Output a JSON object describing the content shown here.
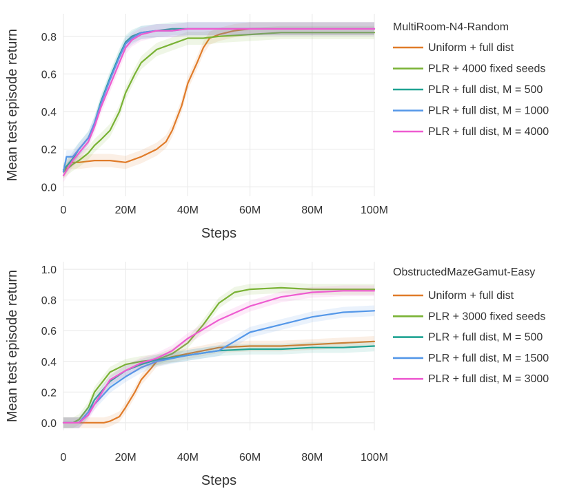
{
  "chart_data": [
    {
      "type": "line",
      "title": "",
      "xlabel": "Steps",
      "ylabel": "Mean test episode return",
      "xlim": [
        0,
        100
      ],
      "ylim": [
        -0.05,
        0.92
      ],
      "xticks": [
        0,
        20,
        40,
        60,
        80,
        100
      ],
      "xtick_labels": [
        "0",
        "20M",
        "40M",
        "60M",
        "80M",
        "100M"
      ],
      "yticks": [
        0.0,
        0.2,
        0.4,
        0.6,
        0.8
      ],
      "ytick_labels": [
        "0.0",
        "0.2",
        "0.4",
        "0.6",
        "0.8"
      ],
      "grid": true,
      "legend_title": "MultiRoom-N4-Random",
      "legend_position": "right",
      "series": [
        {
          "name": "Uniform + full dist",
          "color": "#e07b29",
          "x": [
            0,
            2,
            5,
            10,
            15,
            20,
            25,
            30,
            33,
            35,
            38,
            40,
            43,
            45,
            47,
            50,
            55,
            60,
            65,
            70,
            80,
            90,
            100
          ],
          "y": [
            0.08,
            0.13,
            0.13,
            0.14,
            0.14,
            0.13,
            0.16,
            0.2,
            0.24,
            0.3,
            0.43,
            0.55,
            0.66,
            0.74,
            0.79,
            0.81,
            0.83,
            0.84,
            0.84,
            0.84,
            0.84,
            0.84,
            0.84
          ]
        },
        {
          "name": "PLR + 4000 fixed seeds",
          "color": "#79b234",
          "x": [
            0,
            3,
            5,
            8,
            10,
            12,
            15,
            18,
            20,
            23,
            25,
            30,
            35,
            40,
            45,
            50,
            60,
            70,
            80,
            90,
            100
          ],
          "y": [
            0.08,
            0.12,
            0.14,
            0.18,
            0.22,
            0.25,
            0.3,
            0.4,
            0.5,
            0.6,
            0.66,
            0.73,
            0.76,
            0.79,
            0.79,
            0.8,
            0.81,
            0.82,
            0.82,
            0.82,
            0.82
          ]
        },
        {
          "name": "PLR + full dist, M = 500",
          "color": "#1fa392",
          "x": [
            0,
            3,
            5,
            8,
            10,
            12,
            15,
            18,
            20,
            22,
            25,
            30,
            35,
            40,
            50,
            60,
            70,
            80,
            90,
            100
          ],
          "y": [
            0.09,
            0.15,
            0.2,
            0.26,
            0.34,
            0.45,
            0.58,
            0.7,
            0.77,
            0.8,
            0.82,
            0.83,
            0.84,
            0.84,
            0.84,
            0.84,
            0.84,
            0.84,
            0.84,
            0.84
          ]
        },
        {
          "name": "PLR + full dist, M = 1000",
          "color": "#5497e8",
          "x": [
            0,
            1,
            3,
            5,
            8,
            10,
            12,
            15,
            18,
            20,
            22,
            25,
            30,
            35,
            40,
            50,
            60,
            70,
            80,
            90,
            100
          ],
          "y": [
            0.08,
            0.16,
            0.16,
            0.2,
            0.26,
            0.34,
            0.44,
            0.57,
            0.69,
            0.76,
            0.79,
            0.82,
            0.83,
            0.83,
            0.84,
            0.84,
            0.84,
            0.84,
            0.84,
            0.84,
            0.84
          ]
        },
        {
          "name": "PLR + full dist, M = 4000",
          "color": "#ee5bd0",
          "x": [
            0,
            3,
            5,
            8,
            10,
            12,
            15,
            18,
            20,
            22,
            25,
            30,
            35,
            40,
            50,
            60,
            70,
            80,
            90,
            100
          ],
          "y": [
            0.06,
            0.14,
            0.18,
            0.24,
            0.32,
            0.42,
            0.54,
            0.66,
            0.74,
            0.78,
            0.81,
            0.83,
            0.83,
            0.84,
            0.84,
            0.84,
            0.84,
            0.84,
            0.84,
            0.84
          ]
        }
      ]
    },
    {
      "type": "line",
      "title": "",
      "xlabel": "Steps",
      "ylabel": "Mean test episode return",
      "xlim": [
        0,
        100
      ],
      "ylim": [
        -0.05,
        1.05
      ],
      "xticks": [
        0,
        20,
        40,
        60,
        80,
        100
      ],
      "xtick_labels": [
        "0",
        "20M",
        "40M",
        "60M",
        "80M",
        "100M"
      ],
      "yticks": [
        0.0,
        0.2,
        0.4,
        0.6,
        0.8,
        1.0
      ],
      "ytick_labels": [
        "0.0",
        "0.2",
        "0.4",
        "0.6",
        "0.8",
        "1.0"
      ],
      "grid": true,
      "legend_title": "ObstructedMazeGamut-Easy",
      "legend_position": "right",
      "series": [
        {
          "name": "Uniform + full dist",
          "color": "#e07b29",
          "x": [
            0,
            5,
            10,
            13,
            15,
            18,
            20,
            23,
            25,
            28,
            30,
            35,
            40,
            45,
            50,
            60,
            70,
            80,
            90,
            100
          ],
          "y": [
            0.0,
            0.0,
            0.0,
            0.0,
            0.01,
            0.04,
            0.1,
            0.2,
            0.28,
            0.35,
            0.4,
            0.43,
            0.45,
            0.47,
            0.49,
            0.5,
            0.5,
            0.51,
            0.52,
            0.53
          ]
        },
        {
          "name": "PLR + 3000 fixed seeds",
          "color": "#79b234",
          "x": [
            0,
            3,
            5,
            8,
            10,
            15,
            20,
            25,
            30,
            35,
            40,
            45,
            50,
            55,
            60,
            70,
            80,
            90,
            100
          ],
          "y": [
            0.0,
            0.0,
            0.02,
            0.1,
            0.2,
            0.33,
            0.38,
            0.4,
            0.41,
            0.45,
            0.52,
            0.64,
            0.78,
            0.85,
            0.87,
            0.88,
            0.87,
            0.87,
            0.87
          ]
        },
        {
          "name": "PLR + full dist, M = 500",
          "color": "#1fa392",
          "x": [
            0,
            5,
            8,
            10,
            15,
            20,
            25,
            30,
            40,
            50,
            60,
            70,
            80,
            90,
            100
          ],
          "y": [
            0.0,
            0.0,
            0.07,
            0.15,
            0.27,
            0.34,
            0.38,
            0.41,
            0.44,
            0.47,
            0.48,
            0.48,
            0.49,
            0.49,
            0.5
          ]
        },
        {
          "name": "PLR + full dist, M = 1500",
          "color": "#5497e8",
          "x": [
            0,
            5,
            8,
            10,
            15,
            20,
            25,
            30,
            40,
            50,
            55,
            60,
            70,
            80,
            90,
            100
          ],
          "y": [
            0.0,
            0.0,
            0.07,
            0.12,
            0.23,
            0.3,
            0.36,
            0.4,
            0.44,
            0.47,
            0.53,
            0.59,
            0.64,
            0.69,
            0.72,
            0.73
          ]
        },
        {
          "name": "PLR + full dist, M = 3000",
          "color": "#ee5bd0",
          "x": [
            0,
            5,
            8,
            10,
            15,
            20,
            25,
            30,
            35,
            40,
            50,
            60,
            70,
            80,
            90,
            100
          ],
          "y": [
            0.0,
            0.0,
            0.05,
            0.12,
            0.28,
            0.34,
            0.39,
            0.42,
            0.47,
            0.55,
            0.67,
            0.76,
            0.82,
            0.85,
            0.86,
            0.86
          ]
        }
      ]
    }
  ]
}
